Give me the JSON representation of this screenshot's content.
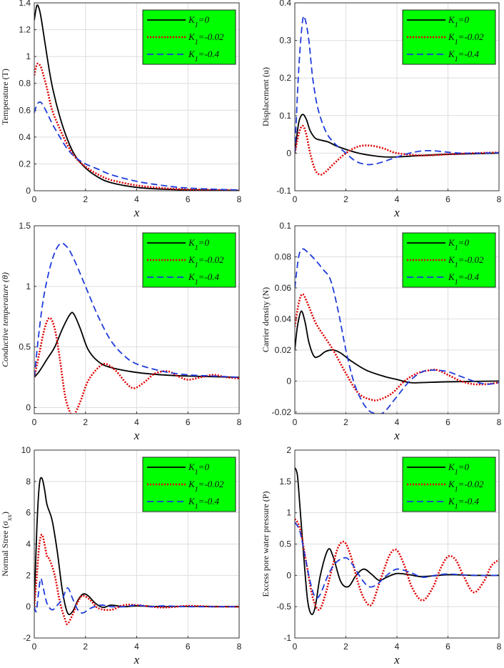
{
  "figure": {
    "legend_entries": [
      {
        "name": "K_1=0",
        "main": "K",
        "sub": "1",
        "rest": "=0",
        "color": "#000000",
        "style": "solid"
      },
      {
        "name": "K_1=-0.02",
        "main": "K",
        "sub": "1",
        "rest": "=-0.02",
        "color": "#e00000",
        "style": "dotted"
      },
      {
        "name": "K_1=-0.4",
        "main": "K",
        "sub": "1",
        "rest": "=-0.4",
        "color": "#1f3bdb",
        "style": "dashed"
      }
    ],
    "legend_background": "#00ff00"
  },
  "chart_data": [
    {
      "id": "temperature",
      "type": "line",
      "xlabel": "x",
      "ylabel": "Temperature (T)",
      "ylabel_italic": false,
      "xlim": [
        0,
        8
      ],
      "ylim": [
        0,
        1.4
      ],
      "xticks": [
        "0",
        "2",
        "4",
        "6",
        "8"
      ],
      "yticks": [
        "0",
        "0.2",
        "0.4",
        "0.6",
        "0.8",
        "1",
        "1.2",
        "1.4"
      ],
      "ytick_values": [
        0,
        0.2,
        0.4,
        0.6,
        0.8,
        1,
        1.2,
        1.4
      ],
      "grid": true,
      "legend": "top-right",
      "series": [
        {
          "name": "K_1=0",
          "x": [
            0,
            0.1,
            0.2,
            0.3,
            0.5,
            0.7,
            1,
            1.3,
            1.6,
            2,
            2.5,
            3,
            4,
            5,
            6,
            8
          ],
          "y": [
            1.27,
            1.38,
            1.35,
            1.25,
            1.0,
            0.78,
            0.55,
            0.38,
            0.26,
            0.17,
            0.1,
            0.06,
            0.025,
            0.012,
            0.006,
            0.002
          ]
        },
        {
          "name": "K_1=-0.02",
          "x": [
            0,
            0.1,
            0.2,
            0.3,
            0.5,
            0.7,
            1,
            1.3,
            1.6,
            2,
            2.5,
            3,
            4,
            5,
            6,
            8
          ],
          "y": [
            0.86,
            0.94,
            0.94,
            0.9,
            0.76,
            0.6,
            0.46,
            0.34,
            0.25,
            0.18,
            0.12,
            0.08,
            0.04,
            0.02,
            0.01,
            0.004
          ]
        },
        {
          "name": "K_1=-0.4",
          "x": [
            0,
            0.1,
            0.2,
            0.3,
            0.5,
            0.7,
            1,
            1.3,
            1.6,
            2,
            2.5,
            3,
            4,
            5,
            6,
            8
          ],
          "y": [
            0.58,
            0.64,
            0.66,
            0.65,
            0.58,
            0.5,
            0.4,
            0.31,
            0.25,
            0.2,
            0.16,
            0.12,
            0.07,
            0.04,
            0.02,
            0.005
          ]
        }
      ]
    },
    {
      "id": "displacement",
      "type": "line",
      "xlabel": "x",
      "ylabel": "Displacement (u)",
      "ylabel_italic": false,
      "xlim": [
        0,
        8
      ],
      "ylim": [
        -0.1,
        0.4
      ],
      "xticks": [
        "0",
        "2",
        "4",
        "6",
        "8"
      ],
      "yticks": [
        "-0.1",
        "0",
        "0.1",
        "0.2",
        "0.3",
        "0.4"
      ],
      "ytick_values": [
        -0.1,
        0,
        0.1,
        0.2,
        0.3,
        0.4
      ],
      "grid": true,
      "legend": "top-right",
      "series": [
        {
          "name": "K_1=0",
          "x": [
            0,
            0.15,
            0.3,
            0.45,
            0.6,
            0.8,
            1.0,
            1.3,
            1.6,
            2.0,
            2.5,
            3.0,
            3.5,
            4.0,
            5.0,
            6.0,
            8.0
          ],
          "y": [
            0,
            0.08,
            0.103,
            0.09,
            0.06,
            0.04,
            0.035,
            0.03,
            0.02,
            0.01,
            0.0,
            -0.006,
            -0.01,
            -0.01,
            -0.006,
            -0.003,
            0
          ]
        },
        {
          "name": "K_1=-0.02",
          "x": [
            0,
            0.15,
            0.3,
            0.45,
            0.6,
            0.8,
            1.0,
            1.2,
            1.5,
            2.0,
            2.5,
            3.0,
            3.5,
            4.0,
            5.0,
            6.0,
            7.0,
            8.0
          ],
          "y": [
            0,
            0.05,
            0.073,
            0.05,
            0.0,
            -0.045,
            -0.057,
            -0.05,
            -0.03,
            0.0,
            0.018,
            0.02,
            0.012,
            0.0,
            -0.006,
            -0.003,
            0.0,
            0.002
          ]
        },
        {
          "name": "K_1=-0.4",
          "x": [
            0,
            0.15,
            0.3,
            0.4,
            0.55,
            0.7,
            0.9,
            1.2,
            1.5,
            2.0,
            2.4,
            2.8,
            3.2,
            3.8,
            4.5,
            5.0,
            5.5,
            6.5,
            8.0
          ],
          "y": [
            0,
            0.22,
            0.35,
            0.357,
            0.3,
            0.2,
            0.12,
            0.06,
            0.03,
            0.0,
            -0.022,
            -0.03,
            -0.028,
            -0.015,
            0.0,
            0.006,
            0.006,
            0.0,
            0.001
          ]
        }
      ]
    },
    {
      "id": "conductive_temperature",
      "type": "line",
      "xlabel": "x",
      "ylabel": "Conductive temperature (θ)",
      "ylabel_italic": true,
      "xlim": [
        0,
        8
      ],
      "ylim": [
        -0.05,
        1.5
      ],
      "xticks": [
        "0",
        "2",
        "4",
        "6",
        "8"
      ],
      "yticks": [
        "0",
        "0.5",
        "1",
        "1.5"
      ],
      "ytick_values": [
        0,
        0.5,
        1,
        1.5
      ],
      "grid": true,
      "legend": "top-right",
      "series": [
        {
          "name": "K_1=0",
          "x": [
            0,
            0.2,
            0.5,
            0.8,
            1.1,
            1.4,
            1.55,
            1.8,
            2.1,
            2.5,
            3.0,
            4.0,
            5.0,
            6.0,
            8.0
          ],
          "y": [
            0.25,
            0.3,
            0.4,
            0.5,
            0.65,
            0.77,
            0.77,
            0.65,
            0.48,
            0.38,
            0.33,
            0.29,
            0.27,
            0.26,
            0.25
          ]
        },
        {
          "name": "K_1=-0.02",
          "x": [
            0,
            0.2,
            0.4,
            0.6,
            0.8,
            1.0,
            1.2,
            1.4,
            1.55,
            1.8,
            2.1,
            2.5,
            2.8,
            3.2,
            3.6,
            3.9,
            4.3,
            4.7,
            5.2,
            5.6,
            6.0,
            6.5,
            7.0,
            7.5,
            8.0
          ],
          "y": [
            0.25,
            0.45,
            0.65,
            0.74,
            0.65,
            0.4,
            0.1,
            -0.04,
            -0.06,
            0.05,
            0.22,
            0.33,
            0.36,
            0.3,
            0.2,
            0.16,
            0.21,
            0.28,
            0.3,
            0.26,
            0.23,
            0.25,
            0.27,
            0.25,
            0.24
          ]
        },
        {
          "name": "K_1=-0.4",
          "x": [
            0,
            0.2,
            0.4,
            0.7,
            1.0,
            1.3,
            1.6,
            2.0,
            2.5,
            3.0,
            3.5,
            4.0,
            5.0,
            6.0,
            7.0,
            8.0
          ],
          "y": [
            0.25,
            0.65,
            0.95,
            1.22,
            1.35,
            1.32,
            1.2,
            1.0,
            0.75,
            0.55,
            0.43,
            0.36,
            0.3,
            0.27,
            0.26,
            0.25
          ]
        }
      ]
    },
    {
      "id": "carrier_density",
      "type": "line",
      "xlabel": "x",
      "ylabel": "Carrier density (N)",
      "ylabel_italic": false,
      "xlim": [
        0,
        8
      ],
      "ylim": [
        -0.021,
        0.1
      ],
      "xticks": [
        "0",
        "2",
        "4",
        "6",
        "8"
      ],
      "yticks": [
        "-0.02",
        "0",
        "0.02",
        "0.04",
        "0.06",
        "0.08",
        "0.1"
      ],
      "ytick_values": [
        -0.02,
        0,
        0.02,
        0.04,
        0.06,
        0.08,
        0.1
      ],
      "grid": true,
      "legend": "top-right",
      "series": [
        {
          "name": "K_1=0",
          "x": [
            0,
            0.1,
            0.25,
            0.4,
            0.55,
            0.75,
            0.95,
            1.2,
            1.5,
            1.8,
            2.2,
            2.8,
            3.5,
            4.0,
            4.5,
            5.0,
            6.0,
            8.0
          ],
          "y": [
            0.02,
            0.035,
            0.045,
            0.038,
            0.025,
            0.016,
            0.016,
            0.019,
            0.02,
            0.018,
            0.013,
            0.007,
            0.003,
            0.001,
            -0.001,
            -0.001,
            -0.0005,
            0
          ]
        },
        {
          "name": "K_1=-0.02",
          "x": [
            0,
            0.15,
            0.3,
            0.5,
            0.8,
            1.1,
            1.5,
            2.0,
            2.5,
            3.0,
            3.3,
            3.8,
            4.3,
            4.8,
            5.3,
            5.6,
            6.0,
            6.5,
            7.0,
            7.5,
            8.0
          ],
          "y": [
            0.035,
            0.05,
            0.056,
            0.05,
            0.038,
            0.03,
            0.02,
            0.005,
            -0.008,
            -0.012,
            -0.012,
            -0.008,
            0.0,
            0.005,
            0.007,
            0.007,
            0.004,
            0.0,
            -0.002,
            -0.002,
            -0.001
          ]
        },
        {
          "name": "K_1=-0.4",
          "x": [
            0,
            0.15,
            0.3,
            0.5,
            0.8,
            1.1,
            1.4,
            1.7,
            2.0,
            2.3,
            2.6,
            2.9,
            3.2,
            3.5,
            4.0,
            4.5,
            5.0,
            5.5,
            6.0,
            6.5,
            7.0,
            7.5,
            8.0
          ],
          "y": [
            0.06,
            0.08,
            0.085,
            0.083,
            0.078,
            0.072,
            0.065,
            0.045,
            0.02,
            0.0,
            -0.012,
            -0.019,
            -0.021,
            -0.02,
            -0.01,
            0.0,
            0.006,
            0.007,
            0.006,
            0.003,
            0.0,
            -0.002,
            -0.001
          ]
        }
      ]
    },
    {
      "id": "normal_stress",
      "type": "line",
      "xlabel": "x",
      "ylabel": "Normal Stree (σ",
      "ylabel_sub": "xx",
      "ylabel_end": ")",
      "ylabel_italic": false,
      "xlim": [
        0,
        8
      ],
      "ylim": [
        -2,
        10
      ],
      "xticks": [
        "0",
        "2",
        "4",
        "6",
        "8"
      ],
      "yticks": [
        "-2",
        "0",
        "2",
        "4",
        "6",
        "8",
        "10"
      ],
      "ytick_values": [
        -2,
        0,
        2,
        4,
        6,
        8,
        10
      ],
      "grid": true,
      "legend": "top-right",
      "series": [
        {
          "name": "K_1=0",
          "x": [
            0,
            0.1,
            0.2,
            0.3,
            0.4,
            0.5,
            0.7,
            0.9,
            1.1,
            1.3,
            1.5,
            1.7,
            1.9,
            2.1,
            2.4,
            2.7,
            3.0,
            3.5,
            4.0,
            5.0,
            6.0,
            8.0
          ],
          "y": [
            0,
            5.0,
            7.8,
            8.2,
            7.5,
            6.5,
            5.5,
            3.5,
            1.0,
            -0.4,
            -0.3,
            0.4,
            0.8,
            0.7,
            0.2,
            -0.05,
            0.1,
            0.0,
            0.05,
            0.0,
            0.02,
            0.0
          ]
        },
        {
          "name": "K_1=-0.02",
          "x": [
            0,
            0.1,
            0.2,
            0.3,
            0.4,
            0.5,
            0.6,
            0.8,
            1.0,
            1.2,
            1.3,
            1.5,
            1.7,
            1.9,
            2.2,
            2.5,
            3.0,
            3.5,
            4.0,
            5.0,
            6.0,
            7.0,
            8.0
          ],
          "y": [
            0,
            2.0,
            4.0,
            4.6,
            4.0,
            3.2,
            3.0,
            2.0,
            0.3,
            -0.8,
            -1.1,
            -0.5,
            0.3,
            0.7,
            0.4,
            -0.1,
            -0.2,
            0.1,
            0.1,
            -0.05,
            0.05,
            0.0,
            0.0
          ]
        },
        {
          "name": "K_1=-0.4",
          "x": [
            0,
            0.08,
            0.16,
            0.25,
            0.35,
            0.5,
            0.7,
            0.9,
            1.1,
            1.3,
            1.5,
            1.7,
            1.9,
            2.2,
            2.6,
            3.0,
            3.5,
            4.0,
            4.5,
            5.0,
            6.0,
            8.0
          ],
          "y": [
            0,
            -0.3,
            0.8,
            1.8,
            1.2,
            0.2,
            -0.2,
            0.1,
            0.5,
            1.2,
            0.5,
            -0.2,
            -0.4,
            -0.1,
            0.1,
            0.0,
            0.0,
            0.1,
            0.0,
            0.05,
            0.0,
            0.0
          ]
        }
      ]
    },
    {
      "id": "pore_pressure",
      "type": "line",
      "xlabel": "x",
      "ylabel": "Excess pore water pressure (P)",
      "ylabel_italic": false,
      "xlim": [
        0,
        8
      ],
      "ylim": [
        -1,
        2
      ],
      "xticks": [
        "0",
        "2",
        "4",
        "6",
        "8"
      ],
      "yticks": [
        "-1",
        "-0.5",
        "0",
        "0.5",
        "1",
        "1.5",
        "2"
      ],
      "ytick_values": [
        -1,
        -0.5,
        0,
        0.5,
        1,
        1.5,
        2
      ],
      "grid": true,
      "legend": "top-right",
      "series": [
        {
          "name": "K_1=0",
          "x": [
            0,
            0.1,
            0.2,
            0.35,
            0.5,
            0.65,
            0.8,
            1.0,
            1.3,
            1.5,
            1.8,
            2.1,
            2.4,
            2.7,
            3.0,
            3.3,
            3.6,
            4.0,
            4.5,
            5.0,
            6.0,
            7.0,
            8.0
          ],
          "y": [
            1.72,
            1.6,
            1.1,
            0.3,
            -0.4,
            -0.62,
            -0.5,
            0.0,
            0.41,
            0.3,
            -0.1,
            -0.18,
            0.0,
            0.1,
            0.02,
            -0.08,
            -0.03,
            0.03,
            0.01,
            -0.02,
            0.01,
            0.0,
            0.0
          ]
        },
        {
          "name": "K_1=-0.02",
          "x": [
            0,
            0.2,
            0.45,
            0.7,
            0.95,
            1.2,
            1.45,
            1.7,
            1.95,
            2.2,
            2.5,
            2.75,
            3.0,
            3.25,
            3.5,
            3.75,
            4.0,
            4.3,
            4.6,
            5.0,
            5.4,
            5.7,
            6.0,
            6.3,
            6.6,
            7.0,
            7.4,
            7.7,
            8.0
          ],
          "y": [
            0.9,
            0.75,
            0.2,
            -0.35,
            -0.55,
            -0.3,
            0.1,
            0.45,
            0.53,
            0.3,
            -0.15,
            -0.4,
            -0.47,
            -0.2,
            0.1,
            0.35,
            0.4,
            0.15,
            -0.2,
            -0.4,
            -0.2,
            0.1,
            0.3,
            0.25,
            0.0,
            -0.27,
            -0.1,
            0.15,
            0.25
          ]
        },
        {
          "name": "K_1=-0.4",
          "x": [
            0,
            0.2,
            0.4,
            0.6,
            0.8,
            1.0,
            1.3,
            1.6,
            2.0,
            2.3,
            2.6,
            2.9,
            3.2,
            3.6,
            4.0,
            4.5,
            5.0,
            5.5,
            6.0,
            7.0,
            8.0
          ],
          "y": [
            0.85,
            0.7,
            0.3,
            -0.1,
            -0.35,
            -0.3,
            0.0,
            0.2,
            0.28,
            0.15,
            -0.05,
            -0.18,
            -0.15,
            0.0,
            0.1,
            0.05,
            -0.03,
            0.0,
            0.02,
            0.0,
            0.0
          ]
        }
      ]
    }
  ]
}
